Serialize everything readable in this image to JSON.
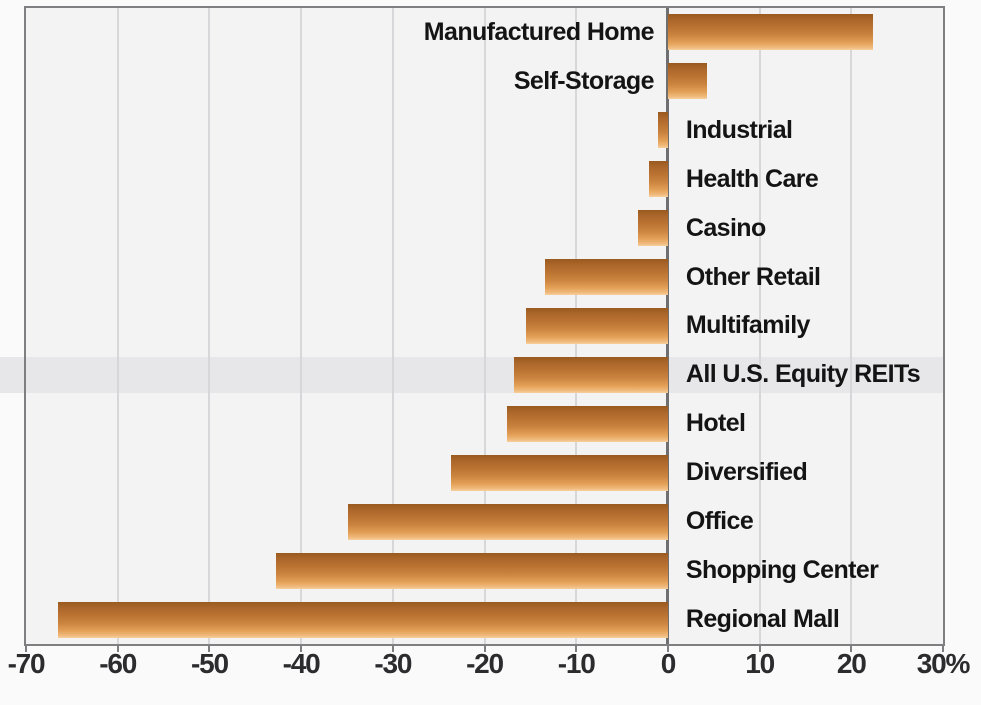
{
  "chart_data": {
    "type": "bar",
    "orientation": "horizontal",
    "title": "",
    "categories": [
      "Manufactured Home",
      "Self-Storage",
      "Industrial",
      "Health Care",
      "Casino",
      "Other Retail",
      "Multifamily",
      "All U.S. Equity REITs",
      "Hotel",
      "Diversified",
      "Office",
      "Shopping Center",
      "Regional Mall"
    ],
    "values": [
      22.4,
      4.3,
      -1.1,
      -2.1,
      -3.3,
      -13.4,
      -15.5,
      -16.8,
      -17.6,
      -23.7,
      -34.9,
      -42.7,
      -66.5
    ],
    "unit": "%",
    "highlighted_category": "All U.S. Equity REITs",
    "xlim": [
      -70,
      30
    ],
    "x_ticks": [
      "-70",
      "-60",
      "-50",
      "-40",
      "-30",
      "-20",
      "-10",
      "0",
      "10",
      "20",
      "30%"
    ],
    "grid": "vertical gridlines every 10 units",
    "legend": "none",
    "label_placement": "negative bars labeled right of zero axis, positive bars labeled left of zero axis",
    "colors": {
      "bar_top": "#995a20",
      "bar_mid": "#cd8641",
      "bar_bottom": "#f6cf9d",
      "highlight_band": "#e7e7ea",
      "plot_background": "#f3f3f4",
      "page_background": "#fafafa",
      "gridline": "#d7d7d9",
      "zero_line": "#6f6f72",
      "border": "#7f7f82",
      "text": "#141414"
    }
  }
}
